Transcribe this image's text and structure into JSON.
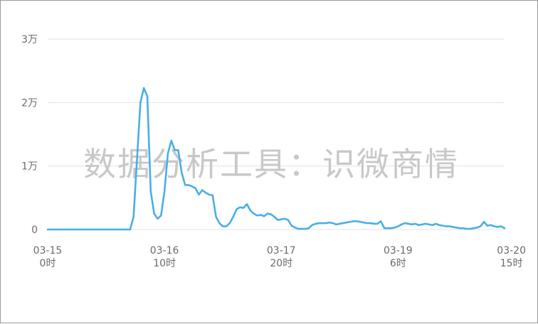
{
  "watermark": "数据分析工具：识微商情",
  "colors": {
    "line": "#4aaee6",
    "grid": "#e0e3ea",
    "axis_text": "#6b6b6b"
  },
  "chart_data": {
    "type": "line",
    "title": "",
    "xlabel": "",
    "ylabel": "",
    "y_ticks": [
      "0",
      "1万",
      "2万",
      "3万"
    ],
    "ylim": [
      0,
      30000
    ],
    "grid": true,
    "x_ticks": [
      {
        "date": "03-15",
        "hour": "0时",
        "index": 0
      },
      {
        "date": "03-16",
        "hour": "10时",
        "index": 34
      },
      {
        "date": "03-17",
        "hour": "20时",
        "index": 68
      },
      {
        "date": "03-19",
        "hour": "6时",
        "index": 102
      },
      {
        "date": "03-20",
        "hour": "15时",
        "index": 135
      }
    ],
    "series": [
      {
        "values": [
          0,
          0,
          0,
          0,
          0,
          0,
          0,
          0,
          0,
          0,
          0,
          0,
          0,
          0,
          0,
          0,
          0,
          0,
          0,
          0,
          0,
          0,
          0,
          0,
          0,
          2000,
          11000,
          20000,
          22300,
          21000,
          6000,
          2500,
          1700,
          2200,
          6000,
          12000,
          14000,
          12500,
          12500,
          9000,
          7000,
          7000,
          6800,
          6500,
          5500,
          6200,
          5800,
          5500,
          5400,
          2000,
          1000,
          500,
          500,
          1000,
          2000,
          3200,
          3500,
          3400,
          4000,
          3000,
          2500,
          2200,
          2300,
          2100,
          2500,
          2400,
          2000,
          1500,
          1600,
          1700,
          1500,
          600,
          300,
          100,
          100,
          100,
          200,
          700,
          900,
          1000,
          1000,
          1000,
          1100,
          1000,
          800,
          900,
          1000,
          1100,
          1200,
          1300,
          1300,
          1200,
          1100,
          1000,
          1000,
          900,
          900,
          1300,
          200,
          200,
          200,
          300,
          500,
          800,
          1000,
          900,
          800,
          900,
          700,
          800,
          900,
          800,
          700,
          900,
          700,
          600,
          500,
          500,
          400,
          300,
          200,
          200,
          100,
          100,
          200,
          300,
          500,
          1200,
          600,
          700,
          500,
          400,
          500,
          200
        ]
      }
    ]
  }
}
